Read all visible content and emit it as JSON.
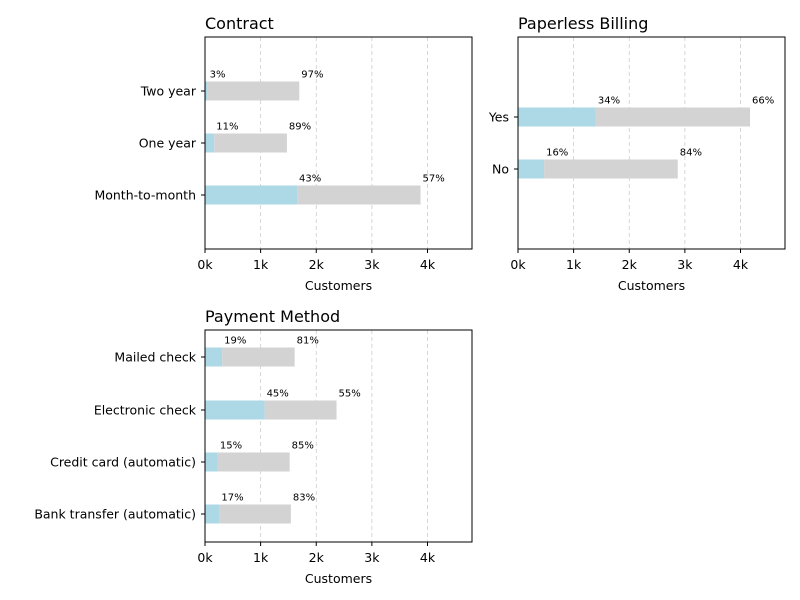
{
  "chart_data": [
    {
      "type": "bar",
      "orientation": "horizontal",
      "stacked": true,
      "title": "Contract",
      "xlabel": "Customers",
      "ylabel": "",
      "xlim": [
        0,
        4800
      ],
      "xticks": [
        0,
        1000,
        2000,
        3000,
        4000
      ],
      "xtick_labels": [
        "0k",
        "1k",
        "2k",
        "3k",
        "4k"
      ],
      "grid": "x-dashed",
      "categories": [
        "Two year",
        "One year",
        "Month-to-month"
      ],
      "series": [
        {
          "color": "#add8e6",
          "values": [
            48,
            166,
            1655
          ],
          "labels": [
            "3%",
            "11%",
            "43%"
          ]
        },
        {
          "color": "#d3d3d3",
          "values": [
            1647,
            1307,
            2220
          ],
          "labels": [
            "97%",
            "89%",
            "57%"
          ]
        }
      ]
    },
    {
      "type": "bar",
      "orientation": "horizontal",
      "stacked": true,
      "title": "Paperless Billing",
      "xlabel": "Customers",
      "ylabel": "",
      "xlim": [
        0,
        4800
      ],
      "xticks": [
        0,
        1000,
        2000,
        3000,
        4000
      ],
      "xtick_labels": [
        "0k",
        "1k",
        "2k",
        "3k",
        "4k"
      ],
      "grid": "x-dashed",
      "categories": [
        "Yes",
        "No"
      ],
      "series": [
        {
          "color": "#add8e6",
          "values": [
            1400,
            469
          ],
          "labels": [
            "34%",
            "16%"
          ]
        },
        {
          "color": "#d3d3d3",
          "values": [
            2771,
            2403
          ],
          "labels": [
            "66%",
            "84%"
          ]
        }
      ]
    },
    {
      "type": "bar",
      "orientation": "horizontal",
      "stacked": true,
      "title": "Payment Method",
      "xlabel": "Customers",
      "ylabel": "",
      "xlim": [
        0,
        4800
      ],
      "xticks": [
        0,
        1000,
        2000,
        3000,
        4000
      ],
      "xtick_labels": [
        "0k",
        "1k",
        "2k",
        "3k",
        "4k"
      ],
      "grid": "x-dashed",
      "categories": [
        "Mailed check",
        "Electronic check",
        "Credit card (automatic)",
        "Bank transfer (automatic)"
      ],
      "series": [
        {
          "color": "#add8e6",
          "values": [
            308,
            1071,
            232,
            258
          ],
          "labels": [
            "19%",
            "45%",
            "15%",
            "17%"
          ]
        },
        {
          "color": "#d3d3d3",
          "values": [
            1304,
            1294,
            1290,
            1286
          ],
          "labels": [
            "81%",
            "55%",
            "85%",
            "83%"
          ]
        }
      ]
    }
  ]
}
